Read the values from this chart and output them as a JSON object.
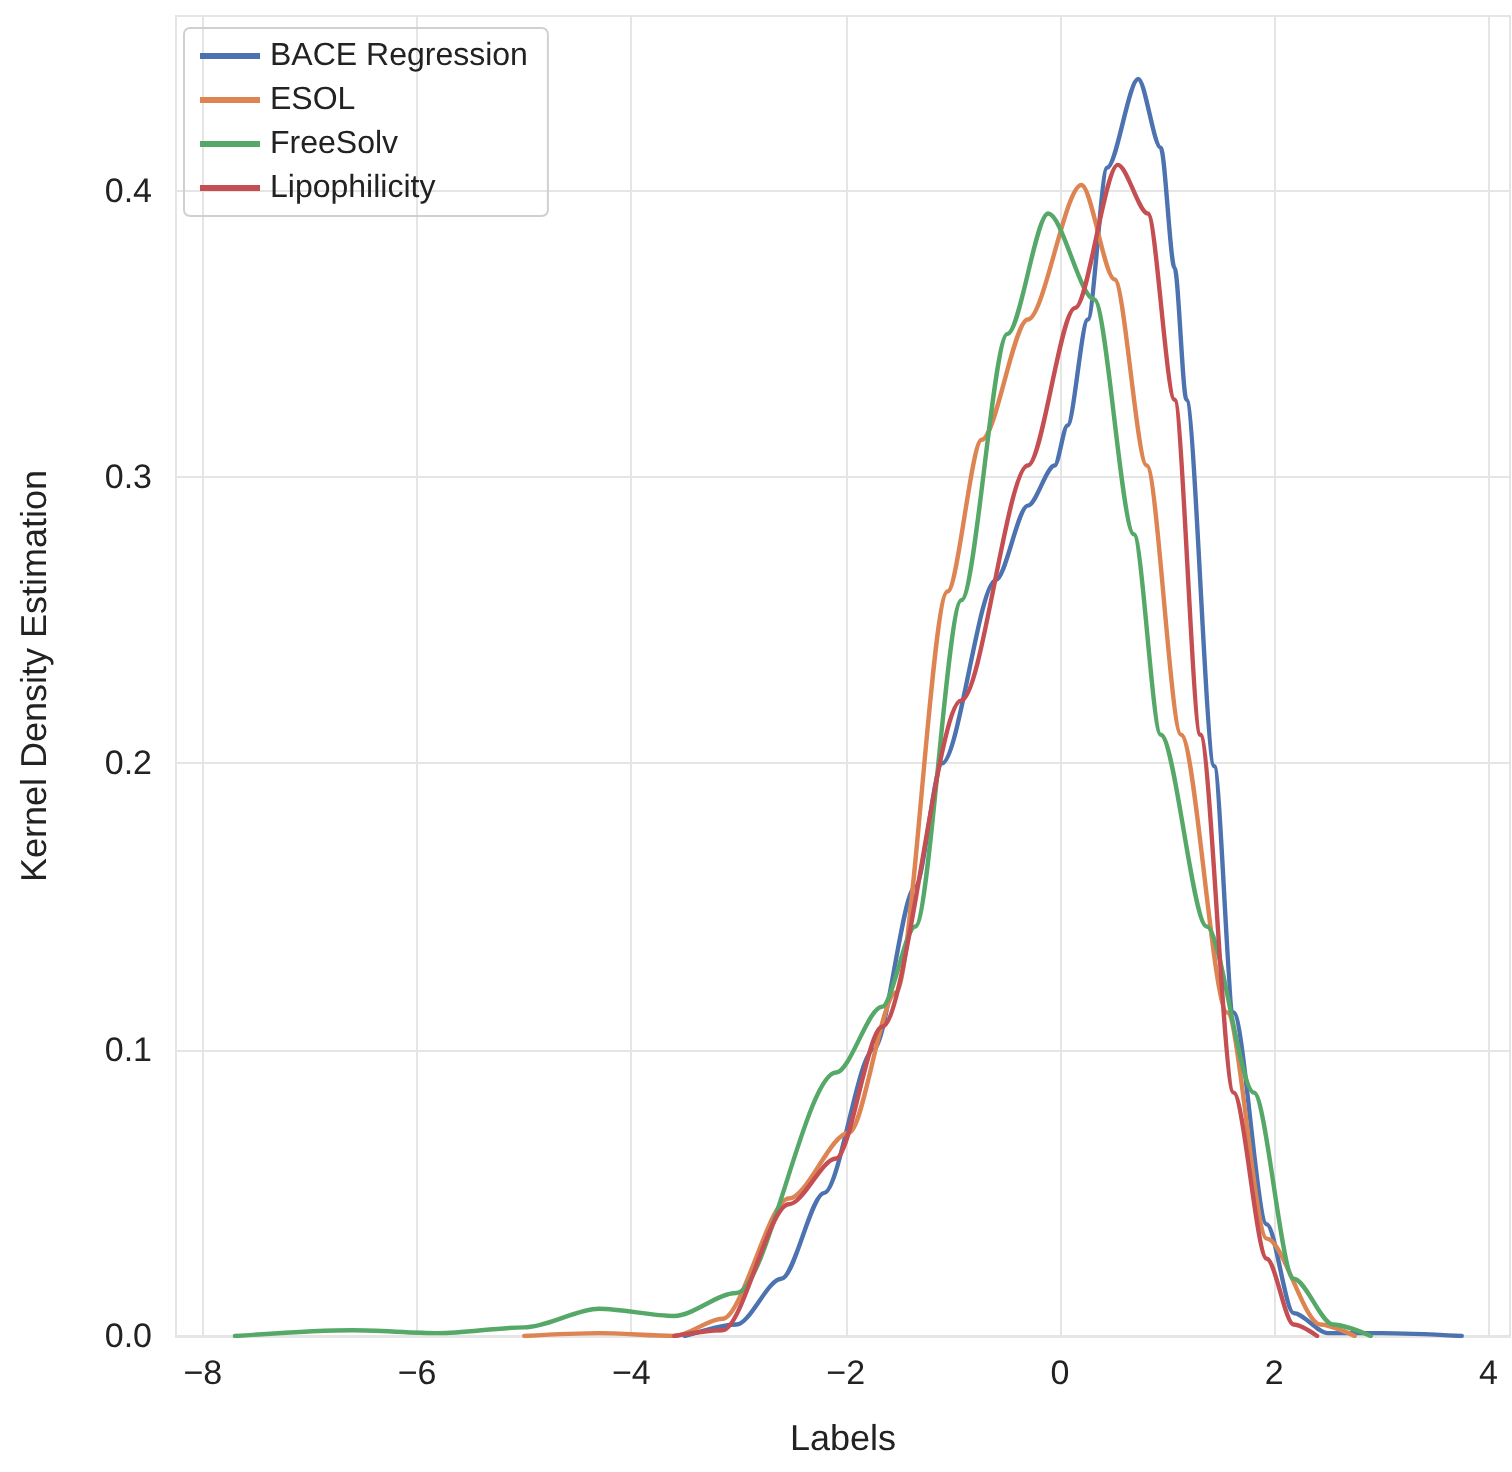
{
  "chart_data": {
    "type": "line",
    "xlabel": "Labels",
    "ylabel": "Kernel Density Estimation",
    "legend": "top left",
    "grid": true,
    "marker": "none",
    "line_style": "solid",
    "xlim": [
      -8.25,
      4.2
    ],
    "ylim": [
      0,
      0.461
    ],
    "xticks": [
      {
        "value": -8,
        "label": "−8"
      },
      {
        "value": -6,
        "label": "−6"
      },
      {
        "value": -4,
        "label": "−4"
      },
      {
        "value": -2,
        "label": "−2"
      },
      0,
      2,
      4
    ],
    "yticks": [
      {
        "value": 0,
        "label": "0.0"
      },
      0.1,
      0.2,
      0.3,
      0.4
    ],
    "series": [
      {
        "name": "BACE Regression",
        "color": "#4c72b0",
        "x": [
          -3.5,
          -3.02,
          -2.6,
          -2.2,
          -1.74,
          -1.35,
          -1.1,
          -0.6,
          -0.3,
          -0.05,
          0.07,
          0.26,
          0.44,
          0.73,
          0.94,
          1.07,
          1.18,
          1.44,
          1.62,
          1.93,
          2.18,
          2.5,
          3.0,
          3.75
        ],
        "values": [
          0,
          0.004,
          0.02,
          0.05,
          0.1,
          0.157,
          0.2,
          0.264,
          0.29,
          0.304,
          0.318,
          0.355,
          0.408,
          0.439,
          0.415,
          0.373,
          0.327,
          0.199,
          0.113,
          0.039,
          0.008,
          0.001,
          0.001,
          0
        ]
      },
      {
        "name": "ESOL",
        "color": "#dd8452",
        "x": [
          -5,
          -4.3,
          -3.6,
          -3.15,
          -2.53,
          -1.97,
          -1.53,
          -1.05,
          -0.73,
          -0.3,
          0.2,
          0.51,
          0.81,
          1.13,
          1.56,
          1.93,
          2.43,
          2.75
        ],
        "values": [
          0,
          0.001,
          0,
          0.006,
          0.048,
          0.071,
          0.12,
          0.26,
          0.313,
          0.355,
          0.402,
          0.369,
          0.304,
          0.21,
          0.113,
          0.034,
          0.004,
          0
        ]
      },
      {
        "name": "FreeSolv",
        "color": "#55a868",
        "x": [
          -7.7,
          -6.6,
          -5.8,
          -5,
          -4.3,
          -3.6,
          -3.02,
          -2.09,
          -1.66,
          -1.35,
          -0.92,
          -0.49,
          -0.11,
          0.32,
          0.69,
          0.94,
          1.37,
          1.81,
          2.18,
          2.55,
          2.9
        ],
        "values": [
          0,
          0.002,
          0.001,
          0.003,
          0.0095,
          0.007,
          0.015,
          0.092,
          0.115,
          0.143,
          0.257,
          0.35,
          0.392,
          0.362,
          0.28,
          0.21,
          0.143,
          0.085,
          0.02,
          0.004,
          0
        ]
      },
      {
        "name": "Lipophilicity",
        "color": "#c44e52",
        "x": [
          -3.6,
          -3.15,
          -2.53,
          -2.09,
          -1.66,
          -0.92,
          -0.3,
          0.14,
          0.54,
          0.82,
          1.07,
          1.31,
          1.62,
          1.93,
          2.18,
          2.4
        ],
        "values": [
          0,
          0.002,
          0.046,
          0.062,
          0.108,
          0.222,
          0.304,
          0.359,
          0.409,
          0.392,
          0.327,
          0.21,
          0.085,
          0.027,
          0.004,
          0
        ]
      }
    ]
  }
}
